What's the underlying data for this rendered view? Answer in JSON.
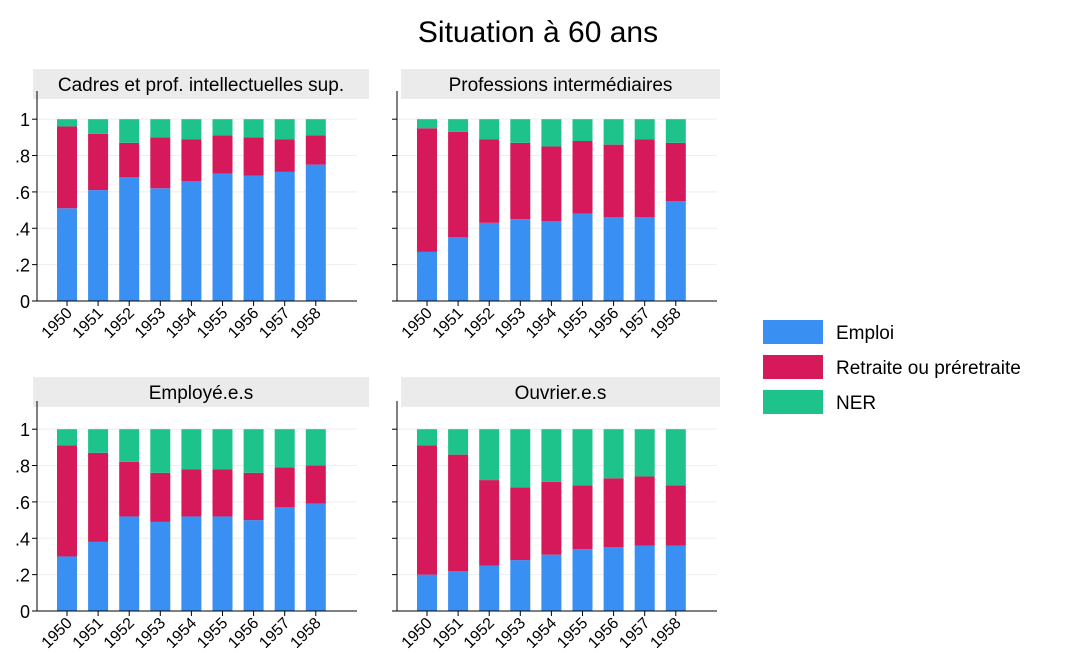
{
  "chart_data": {
    "type": "bar",
    "stacked": true,
    "title": "Situation à 60 ans",
    "categories": [
      "1950",
      "1951",
      "1952",
      "1953",
      "1954",
      "1955",
      "1956",
      "1957",
      "1958"
    ],
    "ylim": [
      0,
      1.1
    ],
    "yticks": [
      "0",
      ".2",
      ".4",
      ".6",
      ".8",
      "1"
    ],
    "ytick_values": [
      0,
      0.2,
      0.4,
      0.6,
      0.8,
      1
    ],
    "grid": true,
    "legend_position": "right",
    "series_info": [
      {
        "name": "Emploi",
        "color": "#3a8ff2"
      },
      {
        "name": "Retraite ou préretraite",
        "color": "#d6195a"
      },
      {
        "name": "NER",
        "color": "#1ec38c"
      }
    ],
    "panels": [
      {
        "title": "Cadres et prof. intellectuelles sup.",
        "series": [
          {
            "name": "Emploi",
            "values": [
              0.51,
              0.61,
              0.68,
              0.62,
              0.66,
              0.7,
              0.69,
              0.71,
              0.75
            ]
          },
          {
            "name": "Retraite ou préretraite",
            "values": [
              0.45,
              0.31,
              0.19,
              0.28,
              0.23,
              0.21,
              0.21,
              0.18,
              0.16
            ]
          },
          {
            "name": "NER",
            "values": [
              0.04,
              0.08,
              0.13,
              0.1,
              0.11,
              0.09,
              0.1,
              0.11,
              0.09
            ]
          }
        ]
      },
      {
        "title": "Professions intermédiaires",
        "series": [
          {
            "name": "Emploi",
            "values": [
              0.27,
              0.35,
              0.43,
              0.45,
              0.44,
              0.48,
              0.46,
              0.46,
              0.55
            ]
          },
          {
            "name": "Retraite ou préretraite",
            "values": [
              0.68,
              0.58,
              0.46,
              0.42,
              0.41,
              0.4,
              0.4,
              0.43,
              0.32
            ]
          },
          {
            "name": "NER",
            "values": [
              0.05,
              0.07,
              0.11,
              0.13,
              0.15,
              0.12,
              0.14,
              0.11,
              0.13
            ]
          }
        ]
      },
      {
        "title": "Employé.e.s",
        "series": [
          {
            "name": "Emploi",
            "values": [
              0.3,
              0.38,
              0.52,
              0.49,
              0.52,
              0.52,
              0.5,
              0.57,
              0.59
            ]
          },
          {
            "name": "Retraite ou préretraite",
            "values": [
              0.61,
              0.49,
              0.3,
              0.27,
              0.26,
              0.26,
              0.26,
              0.22,
              0.21
            ]
          },
          {
            "name": "NER",
            "values": [
              0.09,
              0.13,
              0.18,
              0.24,
              0.22,
              0.22,
              0.24,
              0.21,
              0.2
            ]
          }
        ]
      },
      {
        "title": "Ouvrier.e.s",
        "series": [
          {
            "name": "Emploi",
            "values": [
              0.2,
              0.22,
              0.25,
              0.28,
              0.31,
              0.34,
              0.35,
              0.36,
              0.36
            ]
          },
          {
            "name": "Retraite ou préretraite",
            "values": [
              0.71,
              0.64,
              0.47,
              0.4,
              0.4,
              0.35,
              0.38,
              0.38,
              0.33
            ]
          },
          {
            "name": "NER",
            "values": [
              0.09,
              0.14,
              0.28,
              0.32,
              0.29,
              0.31,
              0.27,
              0.26,
              0.31
            ]
          }
        ]
      }
    ]
  }
}
